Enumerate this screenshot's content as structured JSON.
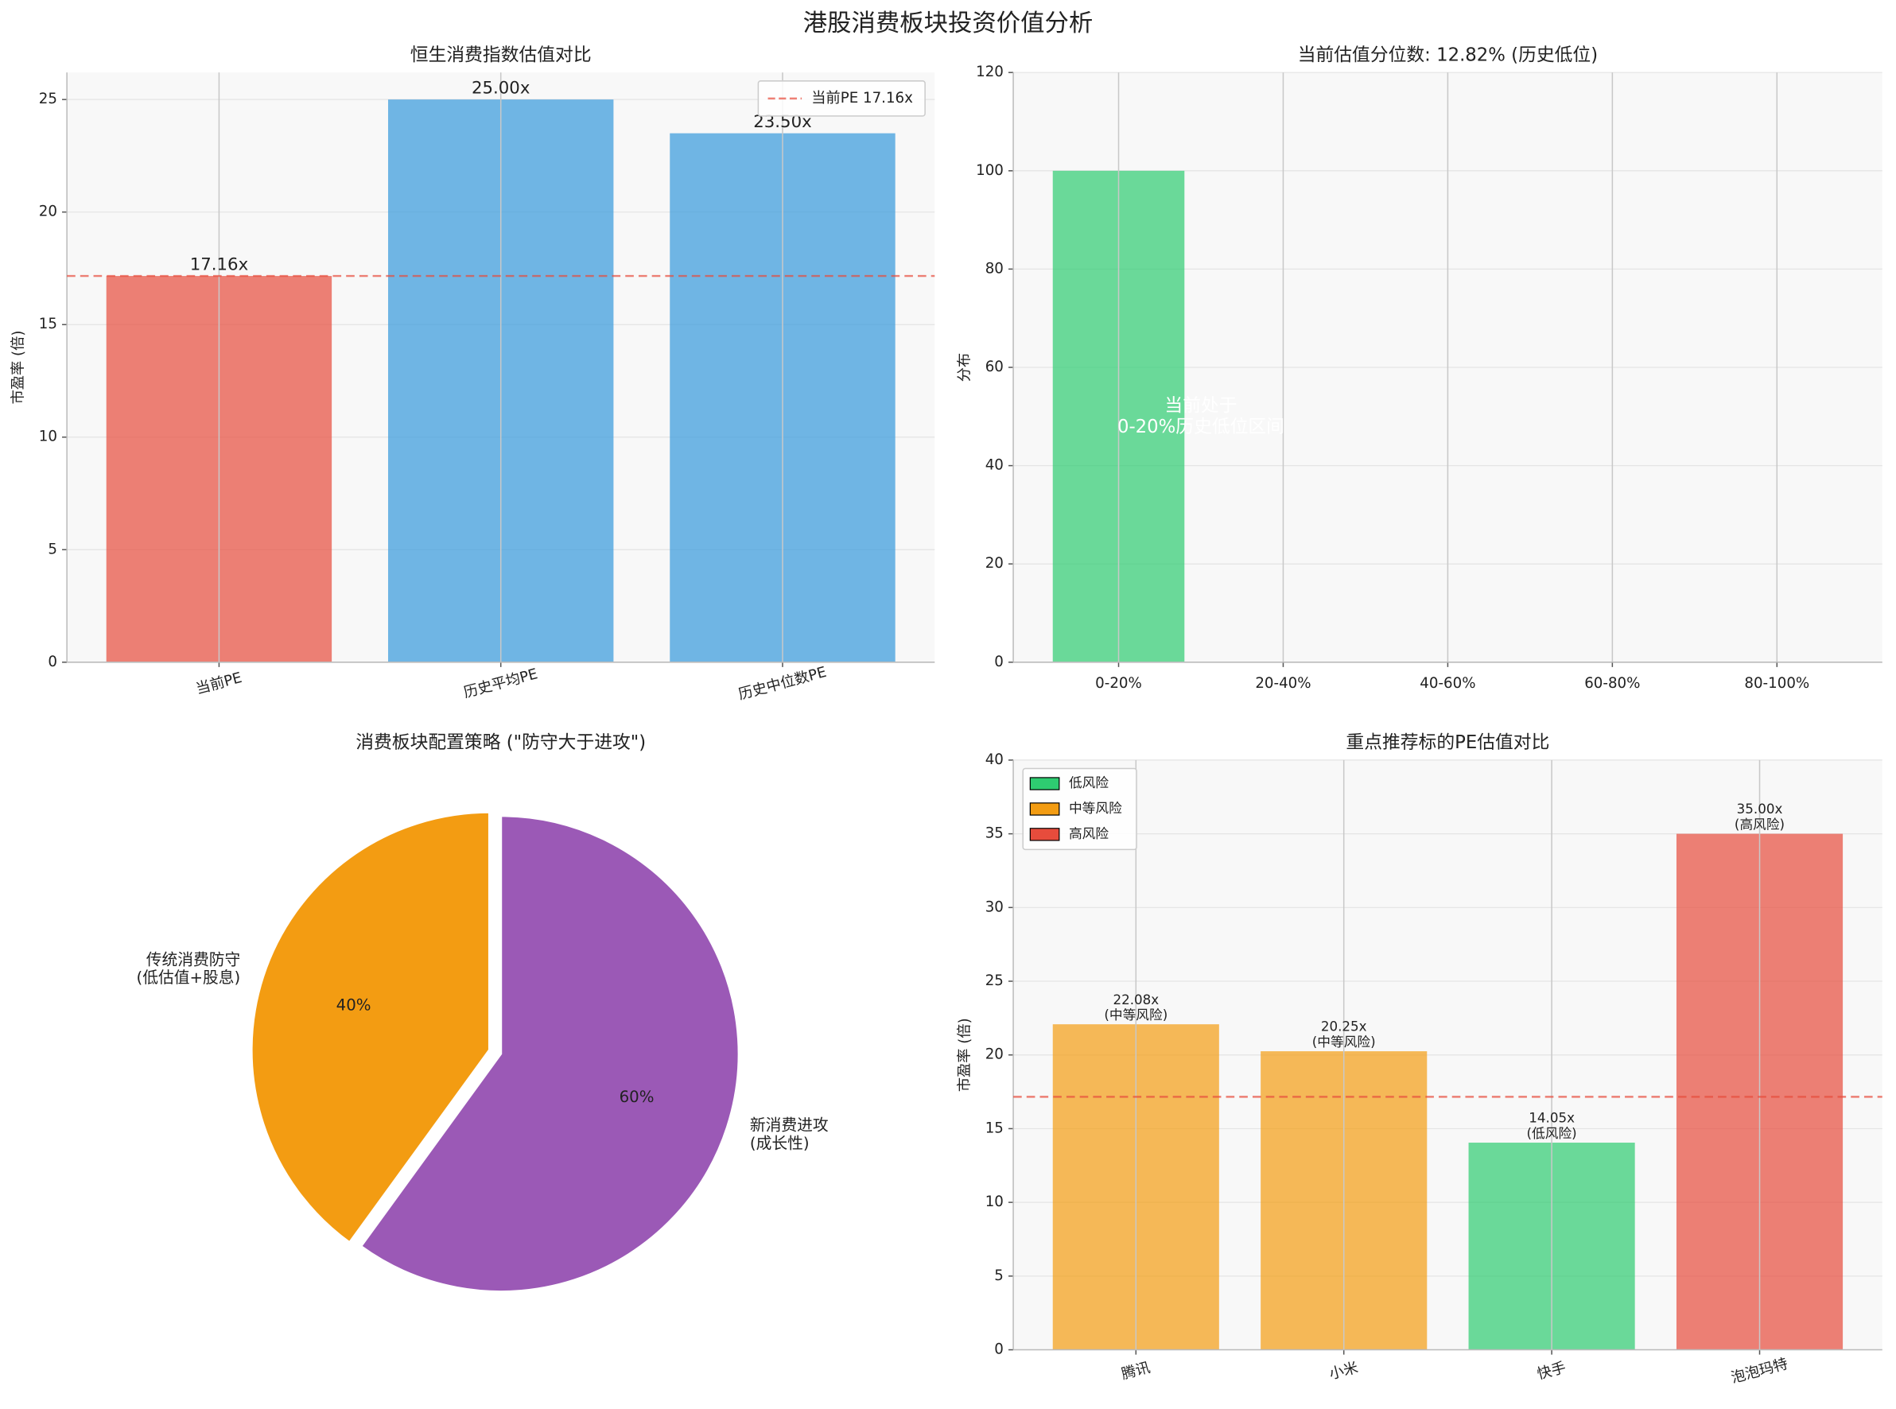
{
  "title": "港股消费板块投资价值分析",
  "chart_data": [
    {
      "type": "bar",
      "title": "恒生消费指数估值对比",
      "ylabel": "市盈率 (倍)",
      "categories": [
        "当前PE",
        "历史平均PE",
        "历史中位数PE"
      ],
      "values": [
        17.16,
        25.0,
        23.5
      ],
      "value_labels": [
        "17.16x",
        "25.00x",
        "23.50x"
      ],
      "colors": [
        "#e74c3c",
        "#3498db",
        "#3498db"
      ],
      "alpha": 0.7,
      "ylim": [
        0,
        26.2
      ],
      "yticks": [
        0,
        5,
        10,
        15,
        20,
        25
      ],
      "grid": true,
      "xtick_rotation": 15,
      "hline": {
        "value": 17.16,
        "label": "当前PE 17.16x",
        "color": "#e74c3c"
      },
      "legend_corner": "upper right"
    },
    {
      "type": "bar",
      "title": "当前估值分位数: 12.82% (历史低位)",
      "ylabel": "分布",
      "categories": [
        "0-20%",
        "20-40%",
        "40-60%",
        "60-80%",
        "80-100%"
      ],
      "values": [
        100,
        0,
        0,
        0,
        0
      ],
      "color": "#2ecc71",
      "alpha": 0.7,
      "ylim": [
        0,
        120
      ],
      "yticks": [
        0,
        20,
        40,
        60,
        80,
        100,
        120
      ],
      "grid": true,
      "annotation": "当前处于\n0-20%历史低位区间"
    },
    {
      "type": "pie",
      "title": "消费板块配置策略 (\"防守大于进攻\")",
      "labels": [
        "传统消费防守\n(低估值+股息)",
        "新消费进攻\n(成长性)"
      ],
      "values": [
        40,
        60
      ],
      "value_labels": [
        "40%",
        "60%"
      ],
      "colors": [
        "#f39c12",
        "#9b59b6"
      ],
      "explode": [
        0.05,
        0
      ],
      "startangle": 90
    },
    {
      "type": "bar",
      "title": "重点推荐标的PE估值对比",
      "ylabel": "市盈率 (倍)",
      "categories": [
        "腾讯",
        "小米",
        "快手",
        "泡泡玛特"
      ],
      "values": [
        22.08,
        20.25,
        14.05,
        35.0
      ],
      "value_labels": [
        "22.08x\n(中等风险)",
        "20.25x\n(中等风险)",
        "14.05x\n(低风险)",
        "35.00x\n(高风险)"
      ],
      "colors": [
        "#f39c12",
        "#f39c12",
        "#2ecc71",
        "#e74c3c"
      ],
      "alpha": 0.7,
      "ylim": [
        0,
        40
      ],
      "yticks": [
        0,
        5,
        10,
        15,
        20,
        25,
        30,
        35,
        40
      ],
      "grid": true,
      "xtick_rotation": 15,
      "hline": {
        "value": 17.16,
        "color": "#e74c3c"
      },
      "legend": [
        {
          "name": "低风险",
          "color": "#2ecc71"
        },
        {
          "name": "中等风险",
          "color": "#f39c12"
        },
        {
          "name": "高风险",
          "color": "#e74c3c"
        }
      ],
      "legend_corner": "upper left"
    }
  ]
}
